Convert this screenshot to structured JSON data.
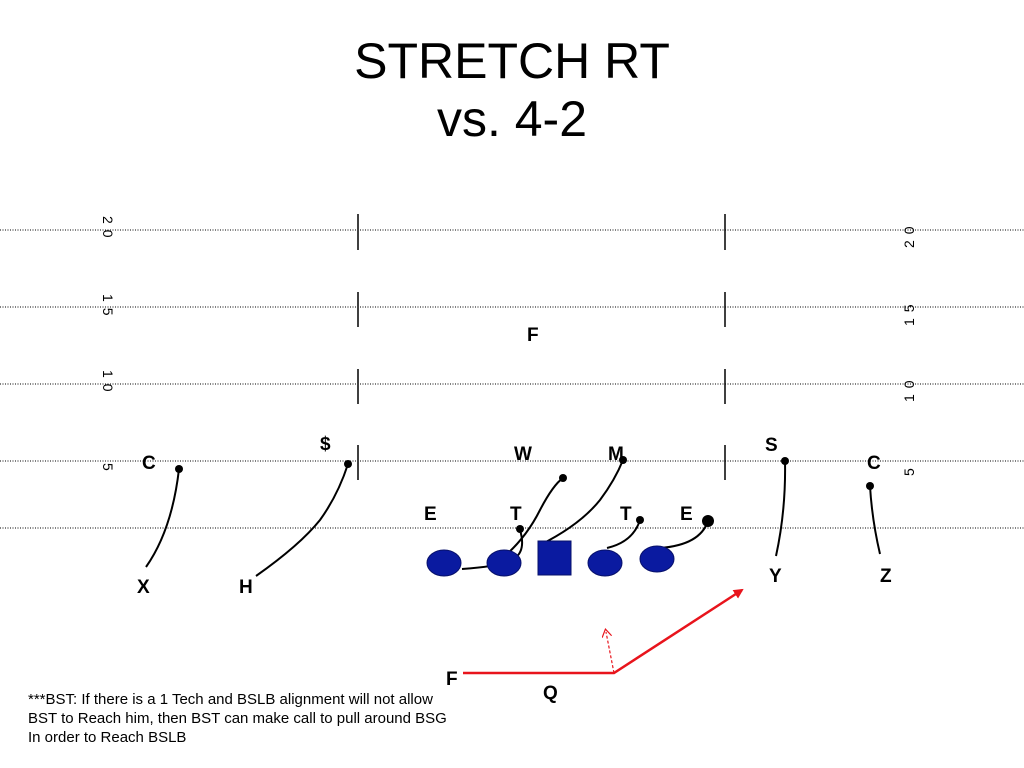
{
  "title": {
    "line1": "STRETCH RT",
    "line2": "vs. 4-2"
  },
  "field": {
    "yard_numbers": [
      "20",
      "15",
      "10",
      "5"
    ]
  },
  "defense": {
    "labels": [
      "F",
      "$",
      "W",
      "M",
      "S",
      "C",
      "C",
      "E",
      "T",
      "T",
      "E"
    ]
  },
  "offense": {
    "labels": [
      "X",
      "H",
      "Y",
      "Z",
      "F",
      "Q"
    ]
  },
  "colors": {
    "offense_fill": "#0a1aa0",
    "motion": "#e8141c",
    "lines": "#000000"
  },
  "note": {
    "lines": [
      "***BST: If there is a 1 Tech and BSLB  alignment will not allow",
      "BST to Reach him, then BST can make call to pull around BSG",
      "In order to Reach BSLB"
    ]
  }
}
